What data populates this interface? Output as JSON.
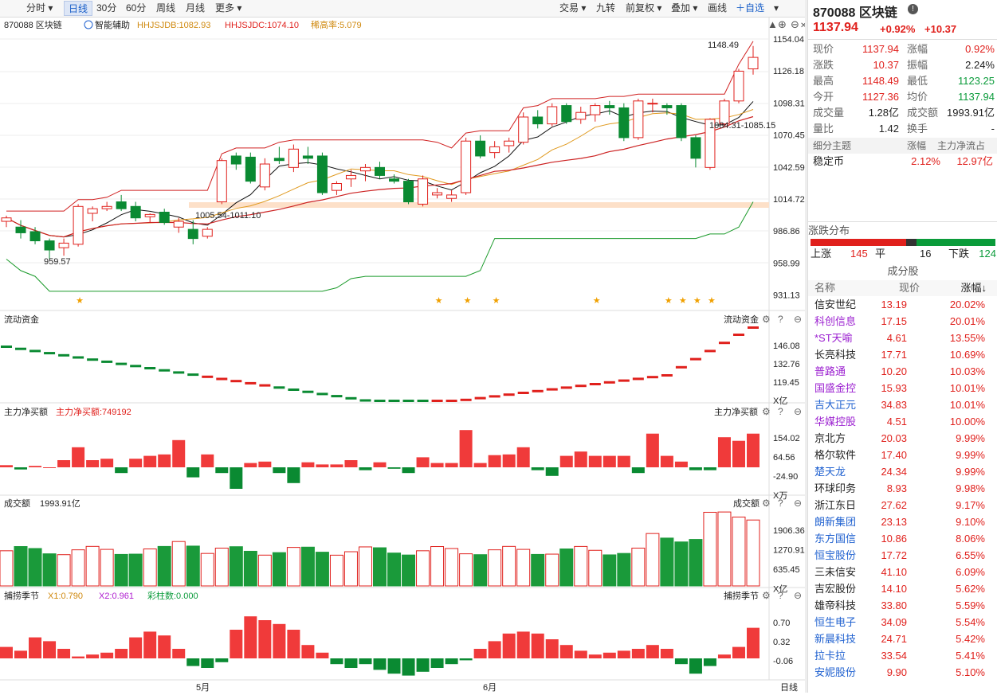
{
  "toolbar": {
    "left": [
      "分时",
      "日线",
      "30分",
      "60分",
      "周线",
      "月线",
      "更多"
    ],
    "right": [
      "交易",
      "九转",
      "前复权",
      "叠加",
      "画线",
      "自选"
    ]
  },
  "main": {
    "code_name": "870088 区块链",
    "indicator": "智能辅助",
    "hhjsjdb": "HHJSJDB:1082.93",
    "hhjsjdc": "HHJSJDC:1074.10",
    "xili": "稀高率:5.079",
    "y_ticks": [
      "1154.04",
      "1126.18",
      "1098.31",
      "1070.45",
      "1042.59",
      "1014.72",
      "986.86",
      "958.99",
      "931.13"
    ],
    "ann_high": "1148.49",
    "ann_low": "959.57",
    "ann_band": "1005.54-1011.10",
    "ann_mid": "1084.31-1085.15"
  },
  "flow": {
    "title": "流动资金",
    "title_r": "流动资金",
    "y_ticks": [
      "146.08",
      "132.76",
      "119.45",
      "X亿"
    ]
  },
  "mainbuy": {
    "title": "主力净买额",
    "value": "主力净买额:749192",
    "title_r": "主力净买额",
    "y_ticks": [
      "154.02",
      "64.56",
      "-24.90",
      "X万"
    ]
  },
  "volume": {
    "title": "成交额",
    "value": "1993.91亿",
    "title_r": "成交额",
    "y_ticks": [
      "1906.36",
      "1270.91",
      "635.45",
      "X亿"
    ]
  },
  "season": {
    "title": "捕捞季节",
    "x1": "X1:0.790",
    "x2": "X2:0.961",
    "bars": "彩柱数:0.000",
    "title_r": "捕捞季节",
    "y_ticks": [
      "0.70",
      "0.32",
      "-0.06"
    ]
  },
  "xaxis": {
    "m5": "5月",
    "m6": "6月",
    "period": "日线"
  },
  "quote": {
    "title": "870088 区块链",
    "price": "1137.94",
    "pct": "+0.92%",
    "chg": "+10.37",
    "rows": [
      [
        "现价",
        "1137.94",
        "涨幅",
        "0.92%"
      ],
      [
        "涨跌",
        "10.37",
        "振幅",
        "2.24%"
      ],
      [
        "最高",
        "1148.49",
        "最低",
        "1123.25"
      ],
      [
        "今开",
        "1127.36",
        "均价",
        "1137.94"
      ],
      [
        "成交量",
        "1.28亿",
        "成交额",
        "1993.91亿"
      ],
      [
        "量比",
        "1.42",
        "换手",
        "-"
      ]
    ]
  },
  "theme": {
    "h1": "细分主题",
    "h2": "涨幅",
    "h3": "主力净流占",
    "name": "稳定币",
    "pct": "2.12%",
    "flow": "12.97亿"
  },
  "dist": {
    "title": "涨跌分布",
    "up_label": "上涨",
    "up": "145",
    "flat_label": "平",
    "flat": "16",
    "down_label": "下跌",
    "down": "124"
  },
  "cons": {
    "title": "成分股",
    "h1": "名称",
    "h2": "现价",
    "h3": "涨幅↓",
    "items": [
      {
        "n": "信安世纪",
        "p": "13.19",
        "c": "20.02%",
        "col": "blk"
      },
      {
        "n": "科创信息",
        "p": "17.15",
        "c": "20.01%",
        "col": "purple"
      },
      {
        "n": "*ST天喻",
        "p": "4.61",
        "c": "13.55%",
        "col": "purple"
      },
      {
        "n": "长亮科技",
        "p": "17.71",
        "c": "10.69%",
        "col": "blk"
      },
      {
        "n": "普路通",
        "p": "10.20",
        "c": "10.03%",
        "col": "purple"
      },
      {
        "n": "国盛金控",
        "p": "15.93",
        "c": "10.01%",
        "col": "purple"
      },
      {
        "n": "吉大正元",
        "p": "34.83",
        "c": "10.01%",
        "col": "blue"
      },
      {
        "n": "华媒控股",
        "p": "4.51",
        "c": "10.00%",
        "col": "purple"
      },
      {
        "n": "京北方",
        "p": "20.03",
        "c": "9.99%",
        "col": "blk"
      },
      {
        "n": "格尔软件",
        "p": "17.40",
        "c": "9.99%",
        "col": "blk"
      },
      {
        "n": "楚天龙",
        "p": "24.34",
        "c": "9.99%",
        "col": "blue"
      },
      {
        "n": "环球印务",
        "p": "8.93",
        "c": "9.98%",
        "col": "blk"
      },
      {
        "n": "浙江东日",
        "p": "27.62",
        "c": "9.17%",
        "col": "blk"
      },
      {
        "n": "朗新集团",
        "p": "23.13",
        "c": "9.10%",
        "col": "blue"
      },
      {
        "n": "东方国信",
        "p": "10.86",
        "c": "8.06%",
        "col": "blue"
      },
      {
        "n": "恒宝股份",
        "p": "17.72",
        "c": "6.55%",
        "col": "blue"
      },
      {
        "n": "三未信安",
        "p": "41.10",
        "c": "6.09%",
        "col": "blk"
      },
      {
        "n": "吉宏股份",
        "p": "14.10",
        "c": "5.62%",
        "col": "blk"
      },
      {
        "n": "雄帝科技",
        "p": "33.80",
        "c": "5.59%",
        "col": "blk"
      },
      {
        "n": "恒生电子",
        "p": "34.09",
        "c": "5.54%",
        "col": "blue"
      },
      {
        "n": "新晨科技",
        "p": "24.71",
        "c": "5.42%",
        "col": "blue"
      },
      {
        "n": "拉卡拉",
        "p": "33.54",
        "c": "5.41%",
        "col": "blue"
      },
      {
        "n": "安妮股份",
        "p": "9.90",
        "c": "5.10%",
        "col": "blue"
      }
    ]
  },
  "chart_data": {
    "type": "candlestick",
    "ohlc": [
      [
        995,
        1000,
        990,
        998
      ],
      [
        990,
        996,
        980,
        985
      ],
      [
        986,
        990,
        975,
        978
      ],
      [
        978,
        980,
        962,
        970
      ],
      [
        972,
        980,
        965,
        976
      ],
      [
        975,
        1010,
        973,
        1008
      ],
      [
        1002,
        1008,
        995,
        1006
      ],
      [
        1006,
        1012,
        1004,
        1008
      ],
      [
        1012,
        1018,
        1004,
        1006
      ],
      [
        1008,
        1012,
        995,
        998
      ],
      [
        999,
        1002,
        994,
        1001
      ],
      [
        1003,
        1006,
        992,
        994
      ],
      [
        990,
        998,
        985,
        995
      ],
      [
        988,
        996,
        975,
        980
      ],
      [
        982,
        990,
        980,
        988
      ],
      [
        1012,
        1050,
        1010,
        1048
      ],
      [
        1052,
        1055,
        1040,
        1045
      ],
      [
        1051,
        1055,
        1028,
        1030
      ],
      [
        1025,
        1050,
        1022,
        1045
      ],
      [
        1050,
        1060,
        1045,
        1048
      ],
      [
        1042,
        1062,
        1038,
        1058
      ],
      [
        1052,
        1060,
        1045,
        1050
      ],
      [
        1052,
        1055,
        1018,
        1020
      ],
      [
        1022,
        1030,
        1018,
        1028
      ],
      [
        1032,
        1040,
        1025,
        1035
      ],
      [
        1039,
        1045,
        1030,
        1042
      ],
      [
        1042,
        1047,
        1032,
        1035
      ],
      [
        1032,
        1036,
        1028,
        1030
      ],
      [
        1030,
        1032,
        1010,
        1012
      ],
      [
        1010,
        1035,
        1008,
        1032
      ],
      [
        1018,
        1024,
        1015,
        1020
      ],
      [
        1015,
        1022,
        1012,
        1018
      ],
      [
        1020,
        1068,
        1018,
        1065
      ],
      [
        1065,
        1070,
        1050,
        1052
      ],
      [
        1055,
        1065,
        1050,
        1060
      ],
      [
        1061,
        1068,
        1055,
        1065
      ],
      [
        1064,
        1090,
        1062,
        1086
      ],
      [
        1086,
        1092,
        1076,
        1080
      ],
      [
        1080,
        1098,
        1078,
        1095
      ],
      [
        1096,
        1098,
        1080,
        1082
      ],
      [
        1084,
        1095,
        1080,
        1090
      ],
      [
        1088,
        1098,
        1082,
        1096
      ],
      [
        1096,
        1100,
        1088,
        1094
      ],
      [
        1094,
        1098,
        1065,
        1068
      ],
      [
        1068,
        1102,
        1066,
        1100
      ],
      [
        1098,
        1102,
        1090,
        1098
      ],
      [
        1096,
        1098,
        1088,
        1094
      ],
      [
        1096,
        1098,
        1065,
        1068
      ],
      [
        1068,
        1070,
        1042,
        1050
      ],
      [
        1042,
        1085,
        1040,
        1084
      ],
      [
        1080,
        1102,
        1078,
        1100
      ],
      [
        1100,
        1128,
        1098,
        1126
      ],
      [
        1128,
        1148,
        1123,
        1138
      ]
    ],
    "ma": {
      "dates": "daily",
      "y_range": [
        931.13,
        1154.04
      ]
    },
    "price_range": [
      931.13,
      1154.04
    ]
  }
}
